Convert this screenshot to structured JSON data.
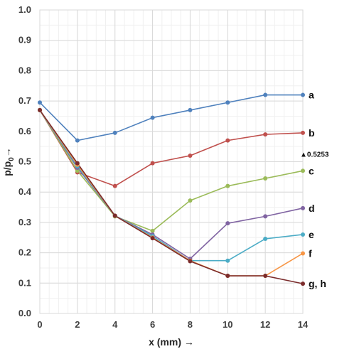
{
  "chart_data": {
    "type": "line",
    "title": "",
    "xlabel": "x (mm) →",
    "ylabel_main": "p/p",
    "ylabel_sub": "0",
    "ylabel_arrow": "→",
    "xlim": [
      0,
      14
    ],
    "ylim": [
      0,
      1.0
    ],
    "x_ticks": [
      "0",
      "2",
      "4",
      "6",
      "8",
      "10",
      "12",
      "14"
    ],
    "y_ticks": [
      "0.0",
      "0.1",
      "0.2",
      "0.3",
      "0.4",
      "0.5",
      "0.6",
      "0.7",
      "0.8",
      "0.9",
      "1.0"
    ],
    "grid": true,
    "legend": "none",
    "series": [
      {
        "name": "a",
        "color": "#4F81BD",
        "x": [
          0,
          2,
          4,
          6,
          8,
          10,
          12,
          14
        ],
        "y": [
          0.695,
          0.57,
          0.595,
          0.645,
          0.67,
          0.695,
          0.72,
          0.72
        ]
      },
      {
        "name": "b",
        "color": "#C0504D",
        "x": [
          0,
          2,
          4,
          6,
          8,
          10,
          12,
          14
        ],
        "y": [
          0.67,
          0.465,
          0.42,
          0.495,
          0.52,
          0.57,
          0.59,
          0.595
        ]
      },
      {
        "name": "c",
        "color": "#9BBB59",
        "x": [
          0,
          2,
          4,
          6,
          8,
          10,
          12,
          14
        ],
        "y": [
          0.67,
          0.47,
          0.32,
          0.272,
          0.372,
          0.42,
          0.445,
          0.47
        ]
      },
      {
        "name": "d",
        "color": "#8064A2",
        "x": [
          0,
          2,
          4,
          6,
          8,
          10,
          12,
          14
        ],
        "y": [
          0.67,
          0.48,
          0.322,
          0.26,
          0.18,
          0.297,
          0.32,
          0.347
        ]
      },
      {
        "name": "e",
        "color": "#4BACC6",
        "x": [
          0,
          2,
          4,
          6,
          8,
          10,
          12,
          14
        ],
        "y": [
          0.67,
          0.485,
          0.322,
          0.255,
          0.174,
          0.174,
          0.246,
          0.26
        ]
      },
      {
        "name": "f",
        "color": "#F79646",
        "x": [
          0,
          2,
          4,
          6,
          8,
          10,
          12,
          14
        ],
        "y": [
          0.67,
          0.49,
          0.322,
          0.25,
          0.174,
          0.124,
          0.124,
          0.198
        ]
      },
      {
        "name": "g, h",
        "color": "#7B2C2C",
        "x": [
          0,
          2,
          4,
          6,
          8,
          10,
          12,
          14
        ],
        "y": [
          0.67,
          0.495,
          0.322,
          0.248,
          0.172,
          0.124,
          0.124,
          0.098
        ]
      }
    ],
    "annotations": [
      {
        "text": "▲0.5253",
        "x": 14,
        "y": 0.5253
      }
    ]
  }
}
